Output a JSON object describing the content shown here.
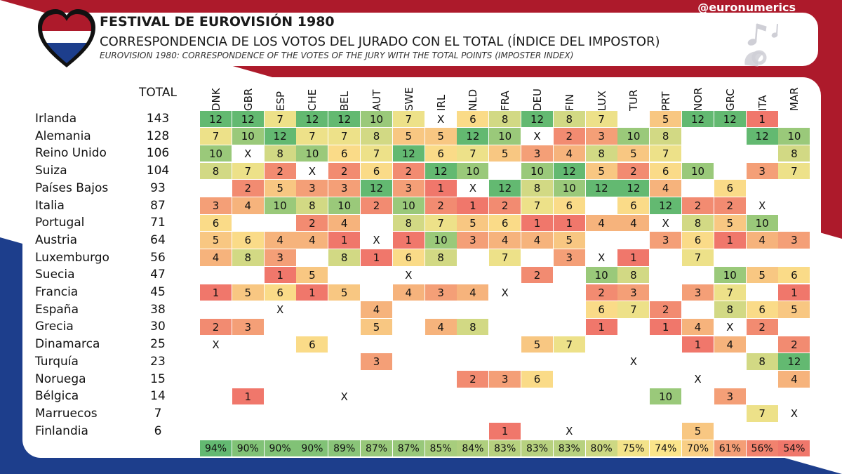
{
  "header": {
    "handle": "@euronumerics",
    "title": "FESTIVAL DE EUROVISIÓN 1980",
    "subtitle": "CORRESPONDENCIA DE LOS VOTOS DEL JURADO CON EL TOTAL (ÍNDICE DEL IMPOSTOR)",
    "subtitle_en": "EUROVISION 1980: CORRESPONDENCE OF THE VOTES OF THE JURY WITH THE TOTAL POINTS (IMPOSTER INDEX)"
  },
  "colors": {
    "bg_red": "#ad1a2b",
    "bg_blue": "#1d3e8c",
    "heat_low": "#f0776b",
    "heat_mid": "#fbe58b",
    "heat_high": "#63b971"
  },
  "chart_data": {
    "type": "table",
    "total_label": "TOTAL",
    "juries": [
      "DNK",
      "GBR",
      "ESP",
      "CHE",
      "BEL",
      "AUT",
      "SWE",
      "IRL",
      "NLD",
      "FRA",
      "DEU",
      "FIN",
      "LUX",
      "TUR",
      "PRT",
      "NOR",
      "GRC",
      "ITA",
      "MAR"
    ],
    "rows": [
      {
        "country": "Irlanda",
        "total": 143,
        "votes": [
          12,
          12,
          7,
          12,
          12,
          10,
          7,
          "X",
          6,
          8,
          12,
          8,
          7,
          null,
          5,
          12,
          12,
          1,
          null
        ]
      },
      {
        "country": "Alemania",
        "total": 128,
        "votes": [
          7,
          10,
          12,
          7,
          7,
          8,
          5,
          5,
          12,
          10,
          "X",
          2,
          3,
          10,
          8,
          null,
          null,
          12,
          10
        ]
      },
      {
        "country": "Reino Unido",
        "total": 106,
        "votes": [
          10,
          "X",
          8,
          10,
          6,
          7,
          12,
          6,
          7,
          5,
          3,
          4,
          8,
          5,
          7,
          null,
          null,
          null,
          8
        ]
      },
      {
        "country": "Suiza",
        "total": 104,
        "votes": [
          8,
          7,
          2,
          "X",
          2,
          6,
          2,
          12,
          10,
          null,
          10,
          12,
          5,
          2,
          6,
          10,
          null,
          3,
          7
        ]
      },
      {
        "country": "Países Bajos",
        "total": 93,
        "votes": [
          null,
          2,
          5,
          3,
          3,
          12,
          3,
          1,
          "X",
          12,
          8,
          10,
          12,
          12,
          4,
          null,
          6,
          null,
          null
        ]
      },
      {
        "country": "Italia",
        "total": 87,
        "votes": [
          3,
          4,
          10,
          8,
          10,
          2,
          10,
          2,
          1,
          2,
          7,
          6,
          null,
          6,
          12,
          2,
          2,
          "X",
          null
        ]
      },
      {
        "country": "Portugal",
        "total": 71,
        "votes": [
          6,
          null,
          null,
          2,
          4,
          null,
          8,
          7,
          5,
          6,
          1,
          1,
          4,
          4,
          "X",
          8,
          5,
          10,
          null
        ]
      },
      {
        "country": "Austria",
        "total": 64,
        "votes": [
          5,
          6,
          4,
          4,
          1,
          "X",
          1,
          10,
          3,
          4,
          4,
          5,
          null,
          null,
          3,
          6,
          1,
          4,
          3
        ]
      },
      {
        "country": "Luxemburgo",
        "total": 56,
        "votes": [
          4,
          8,
          3,
          null,
          8,
          1,
          6,
          8,
          null,
          7,
          null,
          3,
          "X",
          1,
          null,
          7,
          null,
          null,
          null
        ]
      },
      {
        "country": "Suecia",
        "total": 47,
        "votes": [
          null,
          null,
          1,
          5,
          null,
          null,
          "X",
          null,
          null,
          null,
          2,
          null,
          10,
          8,
          null,
          null,
          10,
          5,
          6
        ]
      },
      {
        "country": "Francia",
        "total": 45,
        "votes": [
          1,
          5,
          6,
          1,
          5,
          null,
          4,
          3,
          4,
          "X",
          null,
          null,
          2,
          3,
          null,
          3,
          7,
          null,
          1
        ]
      },
      {
        "country": "España",
        "total": 38,
        "votes": [
          null,
          null,
          "X",
          null,
          null,
          4,
          null,
          null,
          null,
          null,
          null,
          null,
          6,
          7,
          2,
          null,
          8,
          6,
          5
        ]
      },
      {
        "country": "Grecia",
        "total": 30,
        "votes": [
          2,
          3,
          null,
          null,
          null,
          5,
          null,
          4,
          8,
          null,
          null,
          null,
          1,
          null,
          1,
          4,
          "X",
          2,
          null
        ]
      },
      {
        "country": "Dinamarca",
        "total": 25,
        "votes": [
          "X",
          null,
          null,
          6,
          null,
          null,
          null,
          null,
          null,
          null,
          5,
          7,
          null,
          null,
          null,
          1,
          4,
          null,
          2
        ]
      },
      {
        "country": "Turquía",
        "total": 23,
        "votes": [
          null,
          null,
          null,
          null,
          null,
          3,
          null,
          null,
          null,
          null,
          null,
          null,
          null,
          "X",
          null,
          null,
          null,
          8,
          12
        ]
      },
      {
        "country": "Noruega",
        "total": 15,
        "votes": [
          null,
          null,
          null,
          null,
          null,
          null,
          null,
          null,
          2,
          3,
          6,
          null,
          null,
          null,
          null,
          "X",
          null,
          null,
          4
        ]
      },
      {
        "country": "Bélgica",
        "total": 14,
        "votes": [
          null,
          1,
          null,
          null,
          "X",
          null,
          null,
          null,
          null,
          null,
          null,
          null,
          null,
          null,
          10,
          null,
          3,
          null,
          null
        ]
      },
      {
        "country": "Marruecos",
        "total": 7,
        "votes": [
          null,
          null,
          null,
          null,
          null,
          null,
          null,
          null,
          null,
          null,
          null,
          null,
          null,
          null,
          null,
          null,
          null,
          7,
          "X"
        ]
      },
      {
        "country": "Finlandia",
        "total": 6,
        "votes": [
          null,
          null,
          null,
          null,
          null,
          null,
          null,
          null,
          null,
          1,
          null,
          "X",
          null,
          null,
          null,
          5,
          null,
          null,
          null
        ]
      }
    ],
    "imposter_index": [
      94,
      90,
      90,
      90,
      89,
      87,
      87,
      85,
      84,
      83,
      83,
      83,
      80,
      75,
      74,
      70,
      61,
      56,
      54
    ],
    "imposter_index_labels": [
      "94%",
      "90%",
      "90%",
      "90%",
      "89%",
      "87%",
      "87%",
      "85%",
      "84%",
      "83%",
      "83%",
      "83%",
      "80%",
      "75%",
      "74%",
      "70%",
      "61%",
      "56%",
      "54%"
    ]
  }
}
